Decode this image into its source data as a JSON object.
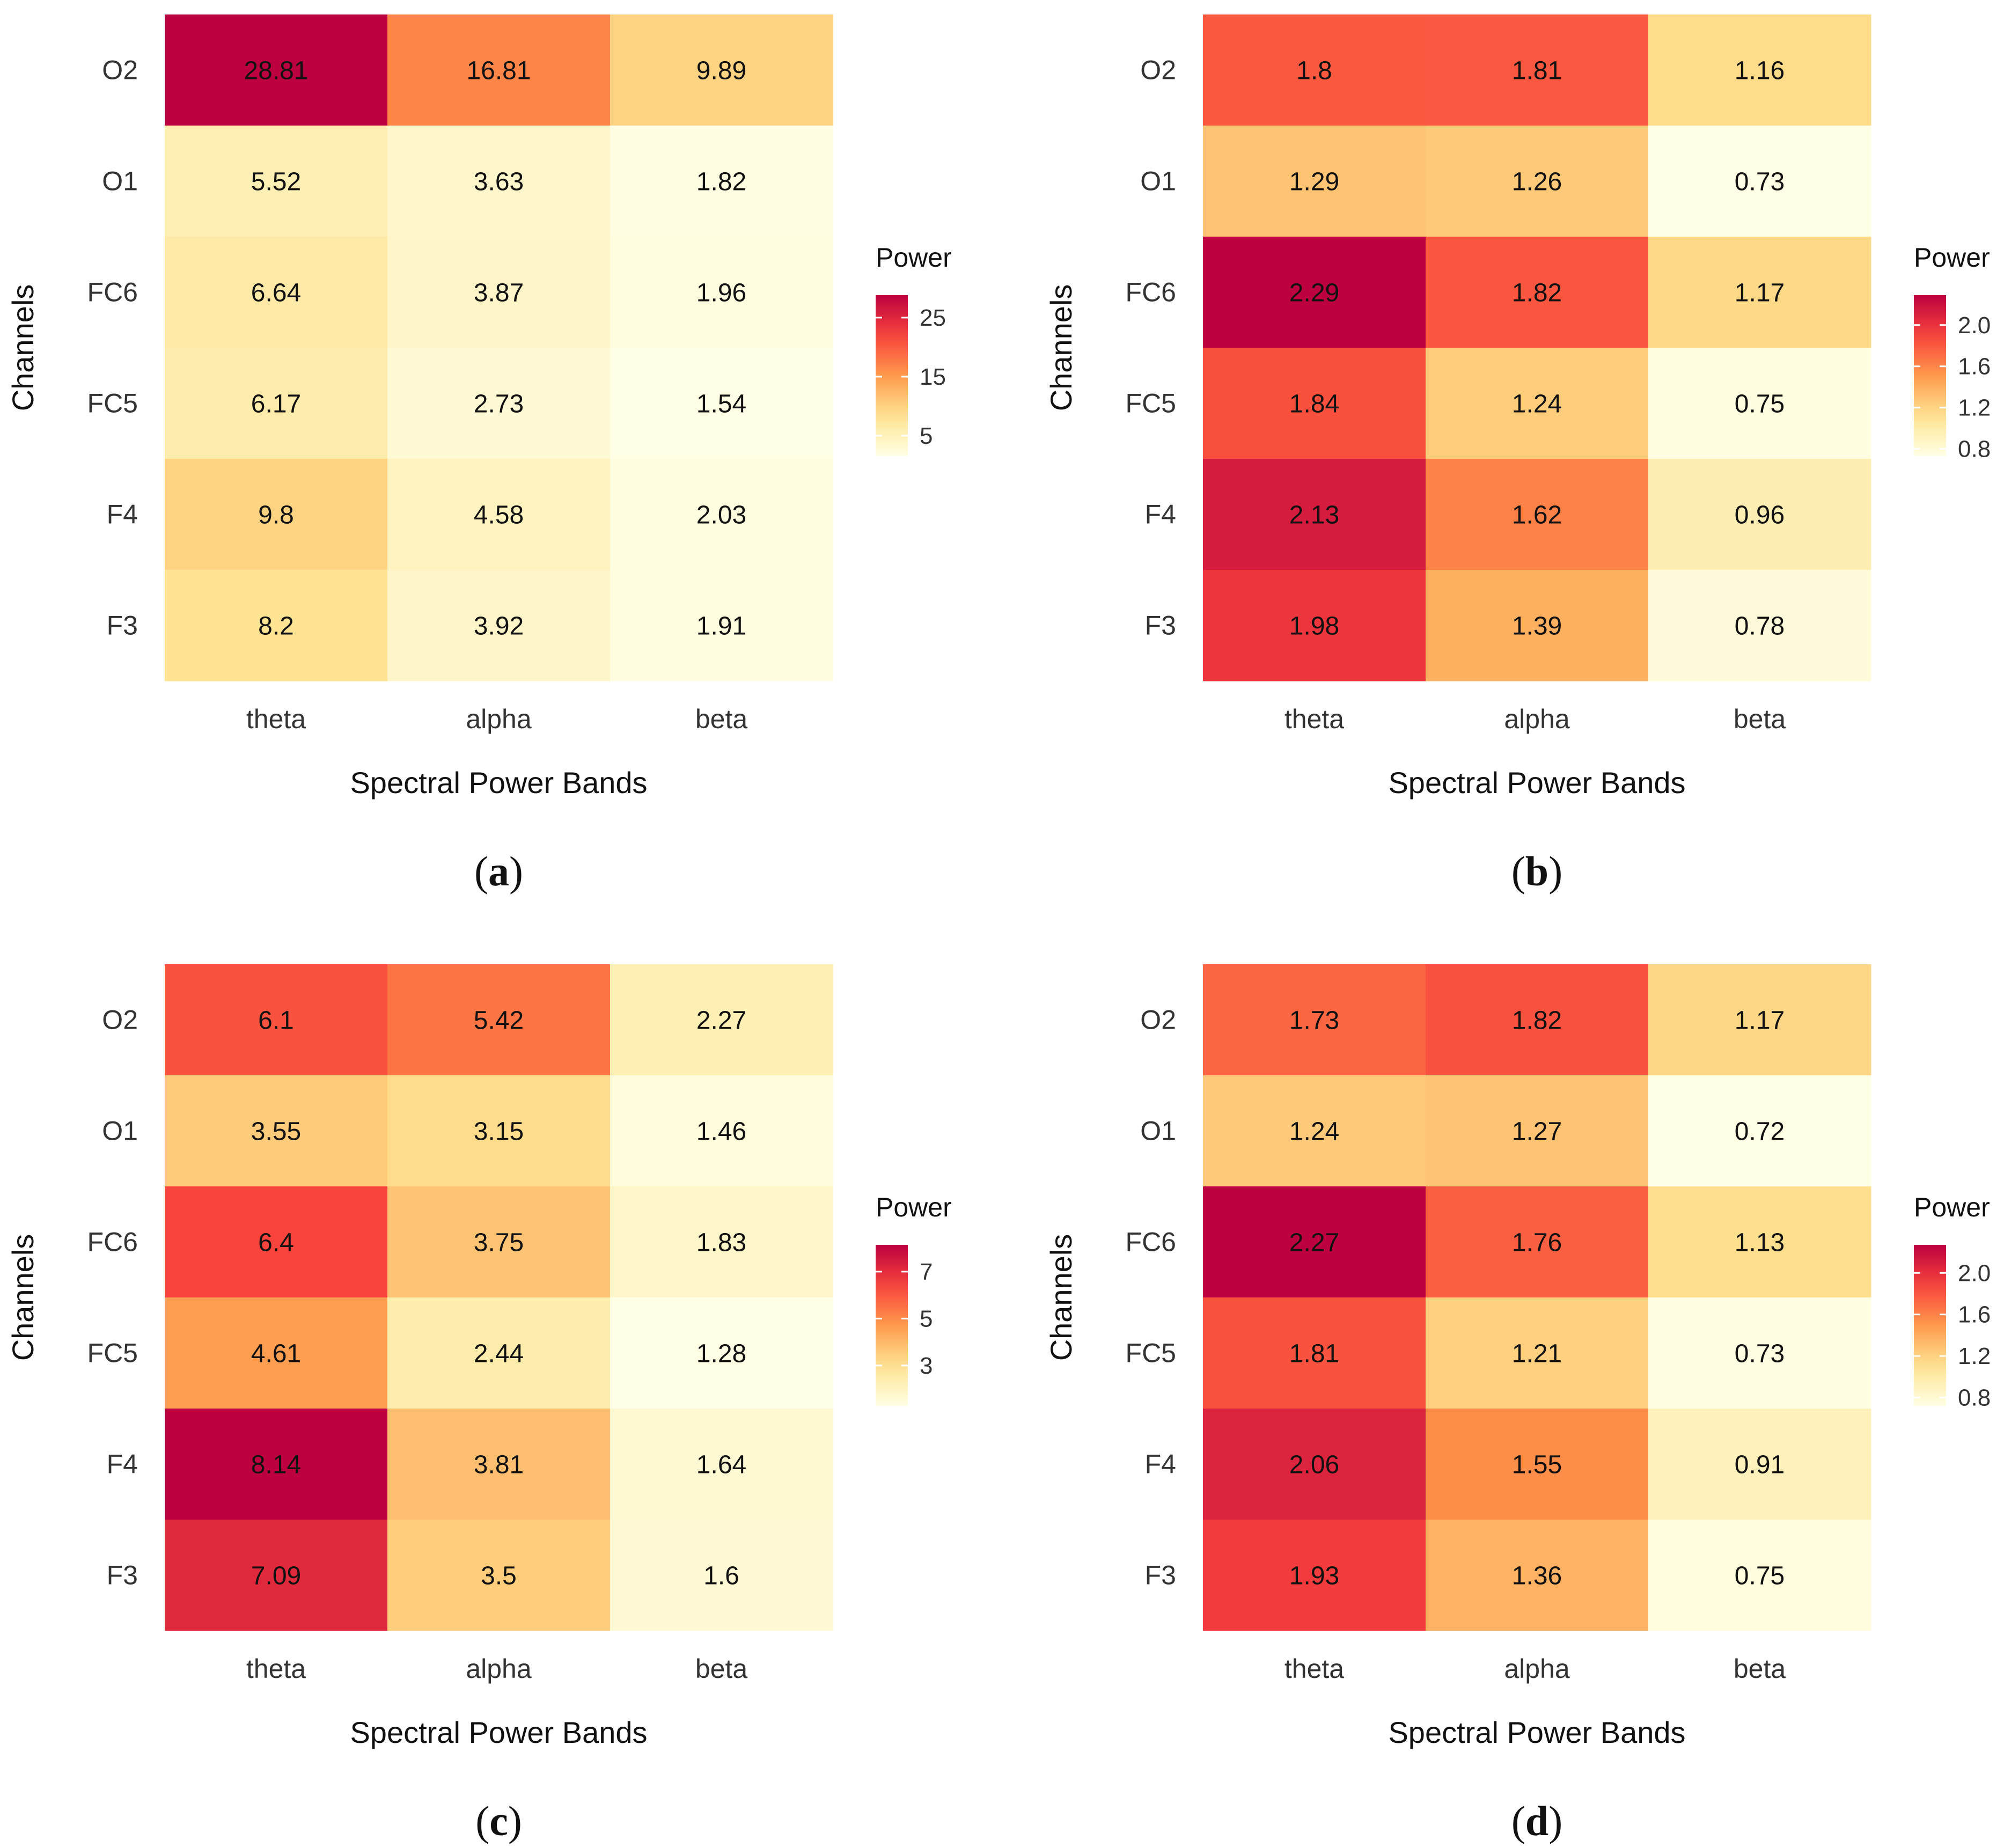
{
  "colors": {
    "scale_low": "#ffffe5",
    "scale_mid_low": "#fee391",
    "scale_mid": "#fe9a4c",
    "scale_mid_high": "#f8433c",
    "scale_high": "#bd0040"
  },
  "chart_data": [
    {
      "type": "heatmap",
      "panel_label": "a",
      "xlabel": "Spectral Power Bands",
      "ylabel": "Channels",
      "x_categories": [
        "theta",
        "alpha",
        "beta"
      ],
      "y_categories": [
        "O2",
        "O1",
        "FC6",
        "FC5",
        "F4",
        "F3"
      ],
      "values": [
        [
          28.81,
          16.81,
          9.89
        ],
        [
          5.52,
          3.63,
          1.82
        ],
        [
          6.64,
          3.87,
          1.96
        ],
        [
          6.17,
          2.73,
          1.54
        ],
        [
          9.8,
          4.58,
          2.03
        ],
        [
          8.2,
          3.92,
          1.91
        ]
      ],
      "value_labels": [
        [
          "28.81",
          "16.81",
          "9.89"
        ],
        [
          "5.52",
          "3.63",
          "1.82"
        ],
        [
          "6.64",
          "3.87",
          "1.96"
        ],
        [
          "6.17",
          "2.73",
          "1.54"
        ],
        [
          "9.8",
          "4.58",
          "2.03"
        ],
        [
          "8.2",
          "3.92",
          "1.91"
        ]
      ],
      "legend": {
        "title": "Power",
        "ticks": [
          5,
          15,
          25
        ],
        "tick_labels": [
          "5",
          "15",
          "25"
        ],
        "range": [
          1.54,
          28.81
        ],
        "position": "right"
      }
    },
    {
      "type": "heatmap",
      "panel_label": "b",
      "xlabel": "Spectral Power Bands",
      "ylabel": "Channels",
      "x_categories": [
        "theta",
        "alpha",
        "beta"
      ],
      "y_categories": [
        "O2",
        "O1",
        "FC6",
        "FC5",
        "F4",
        "F3"
      ],
      "values": [
        [
          1.8,
          1.81,
          1.16
        ],
        [
          1.29,
          1.26,
          0.73
        ],
        [
          2.29,
          1.82,
          1.17
        ],
        [
          1.84,
          1.24,
          0.75
        ],
        [
          2.13,
          1.62,
          0.96
        ],
        [
          1.98,
          1.39,
          0.78
        ]
      ],
      "value_labels": [
        [
          "1.8",
          "1.81",
          "1.16"
        ],
        [
          "1.29",
          "1.26",
          "0.73"
        ],
        [
          "2.29",
          "1.82",
          "1.17"
        ],
        [
          "1.84",
          "1.24",
          "0.75"
        ],
        [
          "2.13",
          "1.62",
          "0.96"
        ],
        [
          "1.98",
          "1.39",
          "0.78"
        ]
      ],
      "legend": {
        "title": "Power",
        "ticks": [
          0.8,
          1.2,
          1.6,
          2.0
        ],
        "tick_labels": [
          "0.8",
          "1.2",
          "1.6",
          "2.0"
        ],
        "range": [
          0.73,
          2.29
        ],
        "position": "right"
      }
    },
    {
      "type": "heatmap",
      "panel_label": "c",
      "xlabel": "Spectral Power Bands",
      "ylabel": "Channels",
      "x_categories": [
        "theta",
        "alpha",
        "beta"
      ],
      "y_categories": [
        "O2",
        "O1",
        "FC6",
        "FC5",
        "F4",
        "F3"
      ],
      "values": [
        [
          6.1,
          5.42,
          2.27
        ],
        [
          3.55,
          3.15,
          1.46
        ],
        [
          6.4,
          3.75,
          1.83
        ],
        [
          4.61,
          2.44,
          1.28
        ],
        [
          8.14,
          3.81,
          1.64
        ],
        [
          7.09,
          3.5,
          1.6
        ]
      ],
      "value_labels": [
        [
          "6.1",
          "5.42",
          "2.27"
        ],
        [
          "3.55",
          "3.15",
          "1.46"
        ],
        [
          "6.4",
          "3.75",
          "1.83"
        ],
        [
          "4.61",
          "2.44",
          "1.28"
        ],
        [
          "8.14",
          "3.81",
          "1.64"
        ],
        [
          "7.09",
          "3.5",
          "1.6"
        ]
      ],
      "legend": {
        "title": "Power",
        "ticks": [
          3,
          5,
          7
        ],
        "tick_labels": [
          "3",
          "5",
          "7"
        ],
        "range": [
          1.28,
          8.14
        ],
        "position": "right"
      }
    },
    {
      "type": "heatmap",
      "panel_label": "d",
      "xlabel": "Spectral Power Bands",
      "ylabel": "Channels",
      "x_categories": [
        "theta",
        "alpha",
        "beta"
      ],
      "y_categories": [
        "O2",
        "O1",
        "FC6",
        "FC5",
        "F4",
        "F3"
      ],
      "values": [
        [
          1.73,
          1.82,
          1.17
        ],
        [
          1.24,
          1.27,
          0.72
        ],
        [
          2.27,
          1.76,
          1.13
        ],
        [
          1.81,
          1.21,
          0.73
        ],
        [
          2.06,
          1.55,
          0.91
        ],
        [
          1.93,
          1.36,
          0.75
        ]
      ],
      "value_labels": [
        [
          "1.73",
          "1.82",
          "1.17"
        ],
        [
          "1.24",
          "1.27",
          "0.72"
        ],
        [
          "2.27",
          "1.76",
          "1.13"
        ],
        [
          "1.81",
          "1.21",
          "0.73"
        ],
        [
          "2.06",
          "1.55",
          "0.91"
        ],
        [
          "1.93",
          "1.36",
          "0.75"
        ]
      ],
      "legend": {
        "title": "Power",
        "ticks": [
          0.8,
          1.2,
          1.6,
          2.0
        ],
        "tick_labels": [
          "0.8",
          "1.2",
          "1.6",
          "2.0"
        ],
        "range": [
          0.72,
          2.27
        ],
        "position": "right"
      }
    }
  ]
}
